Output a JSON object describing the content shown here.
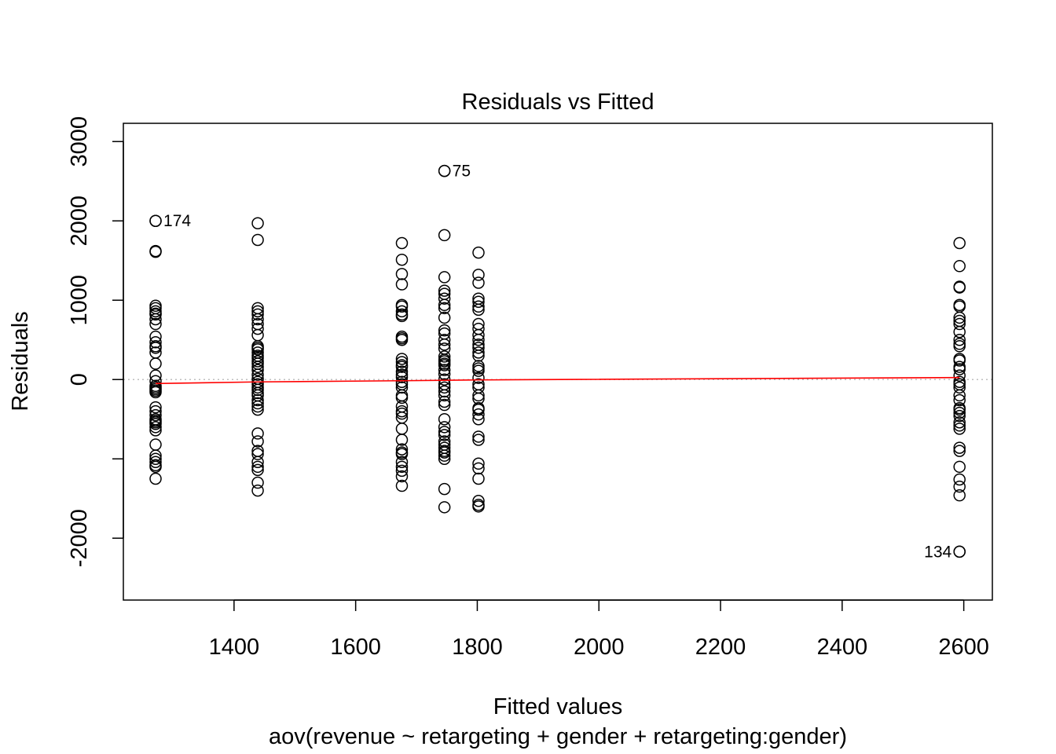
{
  "chart_data": {
    "type": "scatter",
    "title": "Residuals vs Fitted",
    "xlabel": "Fitted values",
    "ylabel": "Residuals",
    "subtitle": "aov(revenue ~ retargeting + gender + retargeting:gender)",
    "xlim": [
      1218,
      2647
    ],
    "ylim": [
      -2780,
      3230
    ],
    "x_ticks": [
      1400,
      1600,
      1800,
      2000,
      2200,
      2400,
      2600
    ],
    "x_tick_labels": [
      "1400",
      "1600",
      "1800",
      "2000",
      "2200",
      "2400",
      "2600"
    ],
    "y_ticks": [
      -2000,
      -1000,
      0,
      1000,
      2000,
      3000
    ],
    "y_tick_labels": [
      "-2000",
      "",
      "0",
      "1000",
      "2000",
      "3000"
    ],
    "reference_line": {
      "y": 0,
      "color": "#bebebe",
      "style": "dotted"
    },
    "smoother": {
      "color": "#ff0000",
      "points": [
        [
          1271,
          -50
        ],
        [
          1439,
          -30
        ],
        [
          1676,
          -15
        ],
        [
          1746,
          -10
        ],
        [
          1802,
          -5
        ],
        [
          2593,
          25
        ]
      ]
    },
    "labeled_points": [
      {
        "x": 1271,
        "y": 2000,
        "label": "174",
        "side": "right"
      },
      {
        "x": 1746,
        "y": 2630,
        "label": "75",
        "side": "right"
      },
      {
        "x": 2593,
        "y": -2170,
        "label": "134",
        "side": "left"
      }
    ],
    "series": [
      {
        "x": 1271,
        "y": [
          2000,
          1620,
          1610,
          930,
          900,
          860,
          830,
          820,
          760,
          700,
          540,
          470,
          420,
          400,
          340,
          200,
          50,
          -20,
          -80,
          -100,
          -120,
          -140,
          -160,
          -350,
          -400,
          -450,
          -500,
          -520,
          -540,
          -560,
          -600,
          -640,
          -820,
          -960,
          -1000,
          -1040,
          -1080,
          -1100,
          -1250
        ]
      },
      {
        "x": 1439,
        "y": [
          1970,
          1760,
          900,
          860,
          820,
          760,
          700,
          640,
          560,
          420,
          400,
          380,
          340,
          300,
          270,
          230,
          200,
          160,
          120,
          60,
          10,
          -30,
          -60,
          -100,
          -130,
          -170,
          -200,
          -260,
          -300,
          -340,
          -380,
          -680,
          -780,
          -900,
          -940,
          -1040,
          -1100,
          -1140,
          -1300,
          -1400
        ]
      },
      {
        "x": 1676,
        "y": [
          1720,
          1510,
          1330,
          1200,
          940,
          920,
          860,
          820,
          800,
          540,
          520,
          500,
          260,
          220,
          180,
          160,
          100,
          60,
          30,
          -30,
          -60,
          -100,
          -200,
          -230,
          -340,
          -400,
          -430,
          -480,
          -620,
          -760,
          -880,
          -920,
          -940,
          -1040,
          -1100,
          -1150,
          -1220,
          -1340
        ]
      },
      {
        "x": 1746,
        "y": [
          2630,
          1820,
          1290,
          1120,
          1080,
          1020,
          940,
          900,
          780,
          620,
          580,
          500,
          440,
          390,
          290,
          250,
          230,
          200,
          180,
          120,
          70,
          0,
          -60,
          -100,
          -150,
          -200,
          -280,
          -320,
          -500,
          -600,
          -660,
          -700,
          -780,
          -820,
          -860,
          -900,
          -920,
          -960,
          -1000,
          -1380,
          -1610
        ]
      },
      {
        "x": 1802,
        "y": [
          1600,
          1320,
          1220,
          1020,
          980,
          920,
          880,
          700,
          640,
          560,
          500,
          440,
          400,
          340,
          300,
          170,
          140,
          110,
          20,
          -60,
          -100,
          -200,
          -240,
          -360,
          -380,
          -440,
          -500,
          -720,
          -760,
          -1060,
          -1120,
          -1250,
          -1530,
          -1580,
          -1600
        ]
      },
      {
        "x": 2593,
        "y": [
          1720,
          1430,
          1170,
          1160,
          940,
          920,
          780,
          740,
          700,
          600,
          500,
          450,
          420,
          260,
          240,
          160,
          130,
          50,
          -30,
          -60,
          -100,
          -200,
          -260,
          -360,
          -380,
          -420,
          -460,
          -540,
          -580,
          -620,
          -860,
          -900,
          -1100,
          -1260,
          -1350,
          -1460,
          -2170
        ]
      }
    ]
  }
}
